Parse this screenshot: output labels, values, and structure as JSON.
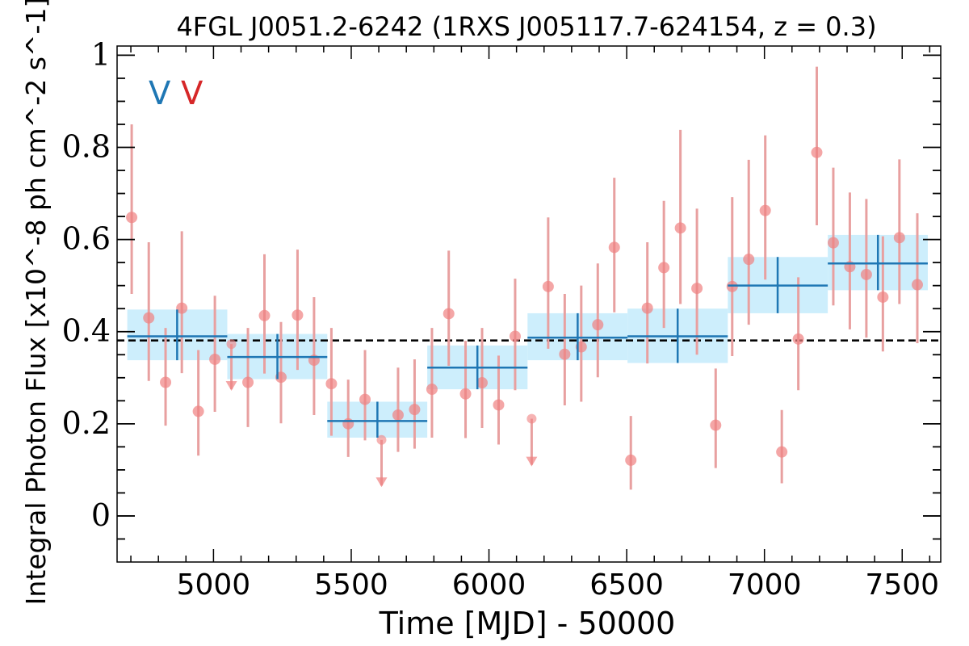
{
  "chart_data": {
    "type": "scatter",
    "title": "4FGL J0051.2-6242 (1RXS J005117.7-624154, z = 0.3)",
    "xlabel": "Time [MJD] - 50000",
    "ylabel": "Integral Photon Flux [x10^-8 ph cm^-2 s^-1]",
    "xlim": [
      4650,
      7640
    ],
    "ylim": [
      -0.1,
      1.02
    ],
    "xticks": [
      5000,
      5500,
      6000,
      6500,
      7000,
      7500
    ],
    "xtick_labels": [
      "5000",
      "5500",
      "6000",
      "6500",
      "7000",
      "7500"
    ],
    "yticks": [
      0,
      0.2,
      0.4,
      0.6,
      0.8,
      1
    ],
    "ytick_labels": [
      "0",
      "0.2",
      "0.4",
      "0.6",
      "0.8",
      "1"
    ],
    "annotations": [
      {
        "text": "V",
        "color": "#1f77b4"
      },
      {
        "text": "V",
        "color": "#d62728"
      }
    ],
    "mean_flux": 0.381,
    "colors": {
      "bins": "#1f77b4",
      "bin_band": "#cdeefc",
      "points": "#f08080",
      "errorbars": "#e8a0a0",
      "mean_line": "#000000"
    },
    "series": [
      {
        "type": "binned",
        "points": [
          {
            "x": 4868,
            "x_lo": 4687,
            "x_hi": 5050,
            "y": 0.39,
            "y_lo": 0.338,
            "y_hi": 0.448
          },
          {
            "x": 5232,
            "x_lo": 5050,
            "x_hi": 5413,
            "y": 0.345,
            "y_lo": 0.297,
            "y_hi": 0.395
          },
          {
            "x": 5595,
            "x_lo": 5413,
            "x_hi": 5776,
            "y": 0.206,
            "y_lo": 0.17,
            "y_hi": 0.248
          },
          {
            "x": 5958,
            "x_lo": 5776,
            "x_hi": 6140,
            "y": 0.322,
            "y_lo": 0.275,
            "y_hi": 0.37
          },
          {
            "x": 6322,
            "x_lo": 6140,
            "x_hi": 6503,
            "y": 0.387,
            "y_lo": 0.338,
            "y_hi": 0.44
          },
          {
            "x": 6685,
            "x_lo": 6503,
            "x_hi": 6867,
            "y": 0.39,
            "y_lo": 0.332,
            "y_hi": 0.45
          },
          {
            "x": 7048,
            "x_lo": 6867,
            "x_hi": 7230,
            "y": 0.5,
            "y_lo": 0.44,
            "y_hi": 0.562
          },
          {
            "x": 7412,
            "x_lo": 7230,
            "x_hi": 7593,
            "y": 0.548,
            "y_lo": 0.49,
            "y_hi": 0.61
          }
        ]
      },
      {
        "type": "short-timescale",
        "points": [
          {
            "x": 4703,
            "y": 0.648,
            "y_lo": 0.482,
            "y_hi": 0.85
          },
          {
            "x": 4765,
            "y": 0.43,
            "y_lo": 0.293,
            "y_hi": 0.594
          },
          {
            "x": 4826,
            "y": 0.29,
            "y_lo": 0.196,
            "y_hi": 0.408
          },
          {
            "x": 4885,
            "y": 0.451,
            "y_lo": 0.31,
            "y_hi": 0.618
          },
          {
            "x": 4945,
            "y": 0.227,
            "y_lo": 0.131,
            "y_hi": 0.36
          },
          {
            "x": 5005,
            "y": 0.34,
            "y_lo": 0.226,
            "y_hi": 0.478
          },
          {
            "x": 5065,
            "ul": 0.373,
            "y_arrow_end": 0.282
          },
          {
            "x": 5125,
            "y": 0.29,
            "y_lo": 0.193,
            "y_hi": 0.408
          },
          {
            "x": 5185,
            "y": 0.435,
            "y_lo": 0.309,
            "y_hi": 0.568
          },
          {
            "x": 5245,
            "y": 0.301,
            "y_lo": 0.201,
            "y_hi": 0.421
          },
          {
            "x": 5305,
            "y": 0.436,
            "y_lo": 0.317,
            "y_hi": 0.578
          },
          {
            "x": 5365,
            "y": 0.338,
            "y_lo": 0.219,
            "y_hi": 0.475
          },
          {
            "x": 5428,
            "y": 0.287,
            "y_lo": 0.174,
            "y_hi": 0.408
          },
          {
            "x": 5489,
            "y": 0.2,
            "y_lo": 0.128,
            "y_hi": 0.296
          },
          {
            "x": 5550,
            "y": 0.253,
            "y_lo": 0.164,
            "y_hi": 0.36
          },
          {
            "x": 5610,
            "ul": 0.165,
            "y_arrow_end": 0.073
          },
          {
            "x": 5670,
            "y": 0.219,
            "y_lo": 0.139,
            "y_hi": 0.322
          },
          {
            "x": 5730,
            "y": 0.231,
            "y_lo": 0.146,
            "y_hi": 0.34
          },
          {
            "x": 5793,
            "y": 0.275,
            "y_lo": 0.17,
            "y_hi": 0.408
          },
          {
            "x": 5854,
            "y": 0.439,
            "y_lo": 0.326,
            "y_hi": 0.576
          },
          {
            "x": 5915,
            "y": 0.265,
            "y_lo": 0.169,
            "y_hi": 0.38
          },
          {
            "x": 5975,
            "y": 0.289,
            "y_lo": 0.191,
            "y_hi": 0.408
          },
          {
            "x": 6035,
            "y": 0.241,
            "y_lo": 0.155,
            "y_hi": 0.348
          },
          {
            "x": 6095,
            "y": 0.39,
            "y_lo": 0.273,
            "y_hi": 0.515
          },
          {
            "x": 6155,
            "ul": 0.211,
            "y_arrow_end": 0.118
          },
          {
            "x": 6215,
            "y": 0.498,
            "y_lo": 0.363,
            "y_hi": 0.648
          },
          {
            "x": 6275,
            "y": 0.351,
            "y_lo": 0.24,
            "y_hi": 0.482
          },
          {
            "x": 6335,
            "y": 0.367,
            "y_lo": 0.248,
            "y_hi": 0.5
          },
          {
            "x": 6395,
            "y": 0.415,
            "y_lo": 0.301,
            "y_hi": 0.548
          },
          {
            "x": 6455,
            "y": 0.583,
            "y_lo": 0.442,
            "y_hi": 0.734
          },
          {
            "x": 6515,
            "y": 0.121,
            "y_lo": 0.057,
            "y_hi": 0.217
          },
          {
            "x": 6575,
            "y": 0.451,
            "y_lo": 0.331,
            "y_hi": 0.594
          },
          {
            "x": 6635,
            "y": 0.539,
            "y_lo": 0.408,
            "y_hi": 0.684
          },
          {
            "x": 6695,
            "y": 0.625,
            "y_lo": 0.46,
            "y_hi": 0.838
          },
          {
            "x": 6755,
            "y": 0.494,
            "y_lo": 0.35,
            "y_hi": 0.667
          },
          {
            "x": 6823,
            "y": 0.197,
            "y_lo": 0.104,
            "y_hi": 0.32
          },
          {
            "x": 6883,
            "y": 0.498,
            "y_lo": 0.347,
            "y_hi": 0.692
          },
          {
            "x": 6943,
            "y": 0.557,
            "y_lo": 0.415,
            "y_hi": 0.773
          },
          {
            "x": 7003,
            "y": 0.663,
            "y_lo": 0.513,
            "y_hi": 0.826
          },
          {
            "x": 7063,
            "y": 0.139,
            "y_lo": 0.071,
            "y_hi": 0.23
          },
          {
            "x": 7123,
            "y": 0.384,
            "y_lo": 0.273,
            "y_hi": 0.518
          },
          {
            "x": 7190,
            "y": 0.789,
            "y_lo": 0.631,
            "y_hi": 0.975
          },
          {
            "x": 7250,
            "y": 0.593,
            "y_lo": 0.457,
            "y_hi": 0.756
          },
          {
            "x": 7310,
            "y": 0.541,
            "y_lo": 0.405,
            "y_hi": 0.702
          },
          {
            "x": 7370,
            "y": 0.524,
            "y_lo": 0.387,
            "y_hi": 0.688
          },
          {
            "x": 7430,
            "y": 0.475,
            "y_lo": 0.357,
            "y_hi": 0.607
          },
          {
            "x": 7490,
            "y": 0.604,
            "y_lo": 0.46,
            "y_hi": 0.774
          },
          {
            "x": 7555,
            "y": 0.502,
            "y_lo": 0.375,
            "y_hi": 0.657
          }
        ]
      }
    ]
  }
}
